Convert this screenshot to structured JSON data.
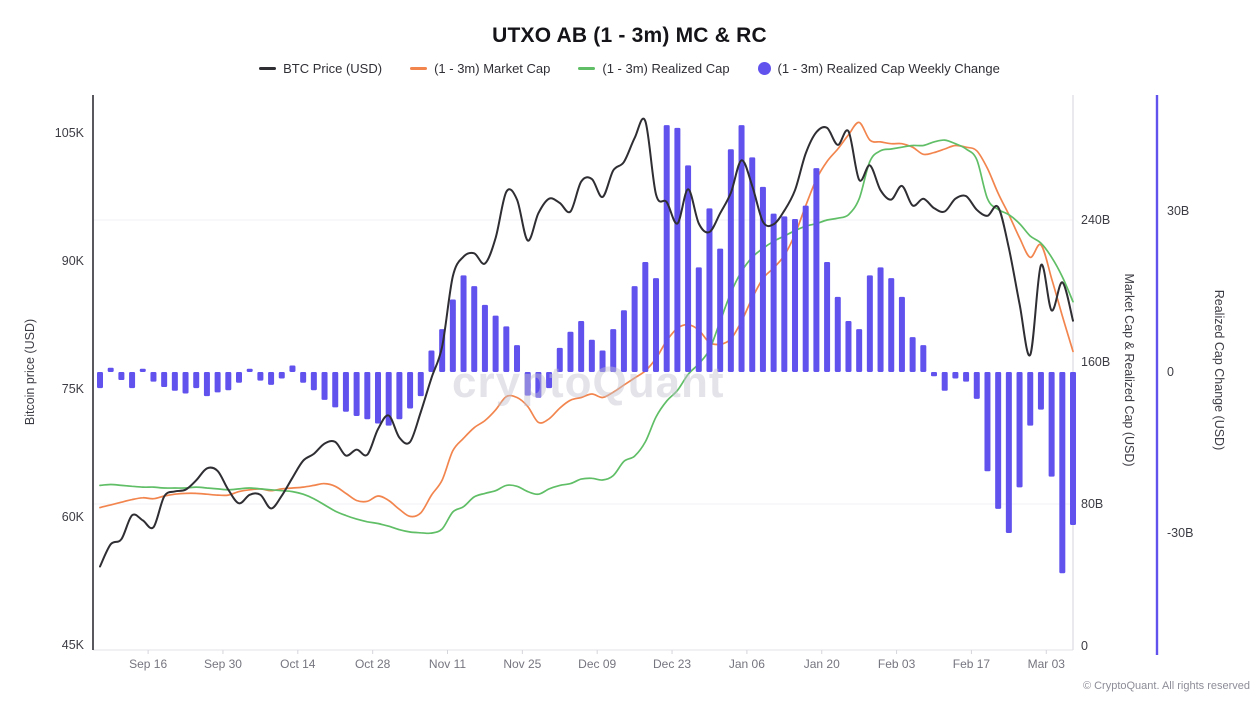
{
  "title": "UTXO AB (1 - 3m) MC & RC",
  "watermark": "cryptoQuant",
  "footer": "© CryptoQuant. All rights reserved",
  "colors": {
    "btc_price": "#2e2e33",
    "market_cap": "#f2854e",
    "realized_cap": "#5fbe66",
    "weekly_change": "#6152ee",
    "axis_dark": "#45454c",
    "axis_light": "#dcdce3",
    "gridline": "#f1f1f6",
    "tick_text": "#6f6f7a"
  },
  "legend": [
    {
      "label": "BTC Price (USD)",
      "marker": "dash",
      "color": "#2e2e33"
    },
    {
      "label": "(1 - 3m) Market Cap",
      "marker": "dash",
      "color": "#f2854e"
    },
    {
      "label": "(1 - 3m) Realized Cap",
      "marker": "dash",
      "color": "#5fbe66"
    },
    {
      "label": "(1 - 3m) Realized Cap Weekly Change",
      "marker": "dot",
      "color": "#6152ee"
    }
  ],
  "axes": {
    "price": {
      "title": "Bitcoin price (USD)",
      "side": "left",
      "ticks": [
        {
          "label": "45K",
          "value": 45
        },
        {
          "label": "60K",
          "value": 60
        },
        {
          "label": "75K",
          "value": 75
        },
        {
          "label": "90K",
          "value": 90
        },
        {
          "label": "105K",
          "value": 105
        }
      ]
    },
    "mc": {
      "title": "Market Cap & Realized Cap (USD)",
      "side": "right",
      "ticks": [
        {
          "label": "0",
          "value": 0
        },
        {
          "label": "80B",
          "value": 80
        },
        {
          "label": "160B",
          "value": 160
        },
        {
          "label": "240B",
          "value": 240
        }
      ]
    },
    "chg": {
      "title": "Realized Cap Change (USD)",
      "side": "far-right",
      "ticks": [
        {
          "label": "-30B",
          "value": -30
        },
        {
          "label": "0",
          "value": 0
        },
        {
          "label": "30B",
          "value": 30
        }
      ]
    },
    "x": {
      "ticks": [
        {
          "label": "Sep 16",
          "day": 9
        },
        {
          "label": "Sep 30",
          "day": 23
        },
        {
          "label": "Oct 14",
          "day": 37
        },
        {
          "label": "Oct 28",
          "day": 51
        },
        {
          "label": "Nov 11",
          "day": 65
        },
        {
          "label": "Nov 25",
          "day": 79
        },
        {
          "label": "Dec 09",
          "day": 93
        },
        {
          "label": "Dec 23",
          "day": 107
        },
        {
          "label": "Jan 06",
          "day": 121
        },
        {
          "label": "Jan 20",
          "day": 135
        },
        {
          "label": "Feb 03",
          "day": 149
        },
        {
          "label": "Feb 17",
          "day": 163
        },
        {
          "label": "Mar 03",
          "day": 177
        }
      ]
    }
  },
  "chart_data": {
    "type": "mixed",
    "title": "UTXO AB (1 - 3m) MC & RC",
    "x_start": "2024-09-07",
    "x_step_days": 2,
    "dates": [
      "Sep 07",
      "Sep 09",
      "Sep 11",
      "Sep 13",
      "Sep 15",
      "Sep 17",
      "Sep 19",
      "Sep 21",
      "Sep 23",
      "Sep 25",
      "Sep 27",
      "Sep 29",
      "Oct 01",
      "Oct 03",
      "Oct 05",
      "Oct 07",
      "Oct 09",
      "Oct 11",
      "Oct 13",
      "Oct 15",
      "Oct 17",
      "Oct 19",
      "Oct 21",
      "Oct 23",
      "Oct 25",
      "Oct 27",
      "Oct 29",
      "Oct 31",
      "Nov 02",
      "Nov 04",
      "Nov 06",
      "Nov 08",
      "Nov 10",
      "Nov 12",
      "Nov 14",
      "Nov 16",
      "Nov 18",
      "Nov 20",
      "Nov 22",
      "Nov 24",
      "Nov 26",
      "Nov 28",
      "Nov 30",
      "Dec 02",
      "Dec 04",
      "Dec 06",
      "Dec 08",
      "Dec 10",
      "Dec 12",
      "Dec 14",
      "Dec 16",
      "Dec 18",
      "Dec 20",
      "Dec 22",
      "Dec 24",
      "Dec 26",
      "Dec 28",
      "Dec 30",
      "Jan 01",
      "Jan 03",
      "Jan 05",
      "Jan 07",
      "Jan 09",
      "Jan 11",
      "Jan 13",
      "Jan 15",
      "Jan 17",
      "Jan 19",
      "Jan 21",
      "Jan 23",
      "Jan 25",
      "Jan 27",
      "Jan 29",
      "Jan 31",
      "Feb 02",
      "Feb 04",
      "Feb 06",
      "Feb 08",
      "Feb 10",
      "Feb 12",
      "Feb 14",
      "Feb 16",
      "Feb 18",
      "Feb 20",
      "Feb 22",
      "Feb 24",
      "Feb 26",
      "Feb 28",
      "Mar 02",
      "Mar 04",
      "Mar 06",
      "Mar 08"
    ],
    "series": [
      {
        "name": "BTC Price (USD)",
        "type": "line",
        "axis": "price",
        "unit": "K USD",
        "color": "#2e2e33",
        "values": [
          54.2,
          56.8,
          57.4,
          60.2,
          59.6,
          58.8,
          62.4,
          63.0,
          63.2,
          64.3,
          65.7,
          65.4,
          63.2,
          61.6,
          62.6,
          62.6,
          61.0,
          62.5,
          64.6,
          66.6,
          67.4,
          68.6,
          68.8,
          67.2,
          67.9,
          67.3,
          70.3,
          71.9,
          69.3,
          68.8,
          72.3,
          76.3,
          80.0,
          88.2,
          90.5,
          90.9,
          89.7,
          92.7,
          98.1,
          97.2,
          92.4,
          95.6,
          97.3,
          96.8,
          95.8,
          99.3,
          99.6,
          97.5,
          100.6,
          101.6,
          104.4,
          106.4,
          97.8,
          96.9,
          94.4,
          98.4,
          94.4,
          93.4,
          95.6,
          98.0,
          101.8,
          98.8,
          94.6,
          94.3,
          95.9,
          98.3,
          102.6,
          105.1,
          105.6,
          103.6,
          105.2,
          99.5,
          101.2,
          98.3,
          97.2,
          98.8,
          96.5,
          97.3,
          96.2,
          95.8,
          97.3,
          97.6,
          96.0,
          95.3,
          96.3,
          91.5,
          85.0,
          79.0,
          89.5,
          84.2,
          87.5,
          83.0
        ]
      },
      {
        "name": "(1 - 3m) Market Cap",
        "type": "line",
        "axis": "mc",
        "unit": "B USD",
        "color": "#f2854e",
        "values": [
          78,
          79.5,
          81,
          82.5,
          83.5,
          83,
          84.5,
          85.5,
          86,
          86,
          85.5,
          85,
          85,
          87,
          88,
          88.5,
          87.5,
          88.5,
          89,
          89.5,
          90.5,
          91.5,
          90,
          86,
          82,
          81.5,
          84.5,
          82,
          77,
          73,
          75,
          85,
          93.5,
          110,
          117,
          123,
          127,
          133,
          140.5,
          140,
          135,
          126,
          128,
          134,
          138.5,
          140,
          142,
          140,
          143,
          147,
          151,
          155,
          162,
          172,
          179,
          181,
          178,
          171,
          170,
          173,
          183,
          196,
          207,
          213,
          220,
          232,
          248,
          263,
          273,
          280,
          288,
          295,
          285,
          284,
          283,
          283,
          281,
          277,
          278,
          280,
          282,
          281,
          279,
          269,
          255,
          243,
          230,
          219,
          226,
          207,
          186,
          166
        ]
      },
      {
        "name": "(1 - 3m) Realized Cap",
        "type": "line",
        "axis": "mc",
        "unit": "B USD",
        "color": "#5fbe66",
        "values": [
          90.5,
          91,
          90.5,
          90,
          89.5,
          89.5,
          89,
          89,
          89,
          89.5,
          89,
          88.5,
          88,
          88.5,
          89,
          88.5,
          88,
          87.5,
          87,
          85.5,
          83,
          79.5,
          76,
          73.5,
          71.5,
          70,
          69,
          67.5,
          65.5,
          64.2,
          63.8,
          63.6,
          66,
          75.5,
          78.5,
          84,
          86,
          87.5,
          90.5,
          90,
          87,
          85.5,
          88.5,
          90.5,
          91.5,
          94,
          94.5,
          93.5,
          96,
          104,
          107,
          115,
          129,
          138,
          144,
          153,
          159,
          167,
          183,
          199,
          211,
          219,
          224,
          228,
          231,
          234,
          236.5,
          238,
          240,
          241,
          243,
          252,
          273,
          279,
          280,
          281,
          282,
          282,
          284,
          285,
          283,
          280,
          274,
          252,
          246,
          243,
          238,
          231,
          227,
          219,
          208,
          194
        ]
      },
      {
        "name": "(1 - 3m) Realized Cap Weekly Change",
        "type": "bar",
        "axis": "chg",
        "unit": "B USD",
        "color": "#6152ee",
        "values": [
          -3.0,
          0.8,
          -1.5,
          -3.0,
          0.6,
          -1.8,
          -2.8,
          -3.5,
          -4.0,
          -3.0,
          -4.5,
          -3.8,
          -3.4,
          -2.0,
          0.6,
          -1.6,
          -2.4,
          -1.2,
          1.2,
          -2.0,
          -3.4,
          -5.2,
          -6.6,
          -7.4,
          -8.2,
          -8.8,
          -9.6,
          -10.0,
          -8.8,
          -6.8,
          -4.5,
          4.0,
          8.0,
          13.5,
          18.0,
          16.0,
          12.5,
          10.5,
          8.5,
          5.0,
          -4.4,
          -4.8,
          -3.0,
          4.5,
          7.5,
          9.5,
          6.0,
          4.0,
          8.0,
          11.5,
          16.0,
          20.5,
          17.5,
          46.0,
          45.5,
          38.5,
          19.5,
          30.5,
          23.0,
          41.5,
          46.0,
          40.0,
          34.5,
          29.5,
          29.0,
          28.5,
          31.0,
          38.0,
          20.5,
          14.0,
          9.5,
          8.0,
          18.0,
          19.5,
          17.5,
          14.0,
          6.5,
          5.0,
          -0.8,
          -3.5,
          -1.2,
          -1.8,
          -5.0,
          -18.5,
          -25.5,
          -30.0,
          -21.5,
          -10.0,
          -7.0,
          -19.5,
          -37.5,
          -28.5
        ]
      }
    ]
  }
}
